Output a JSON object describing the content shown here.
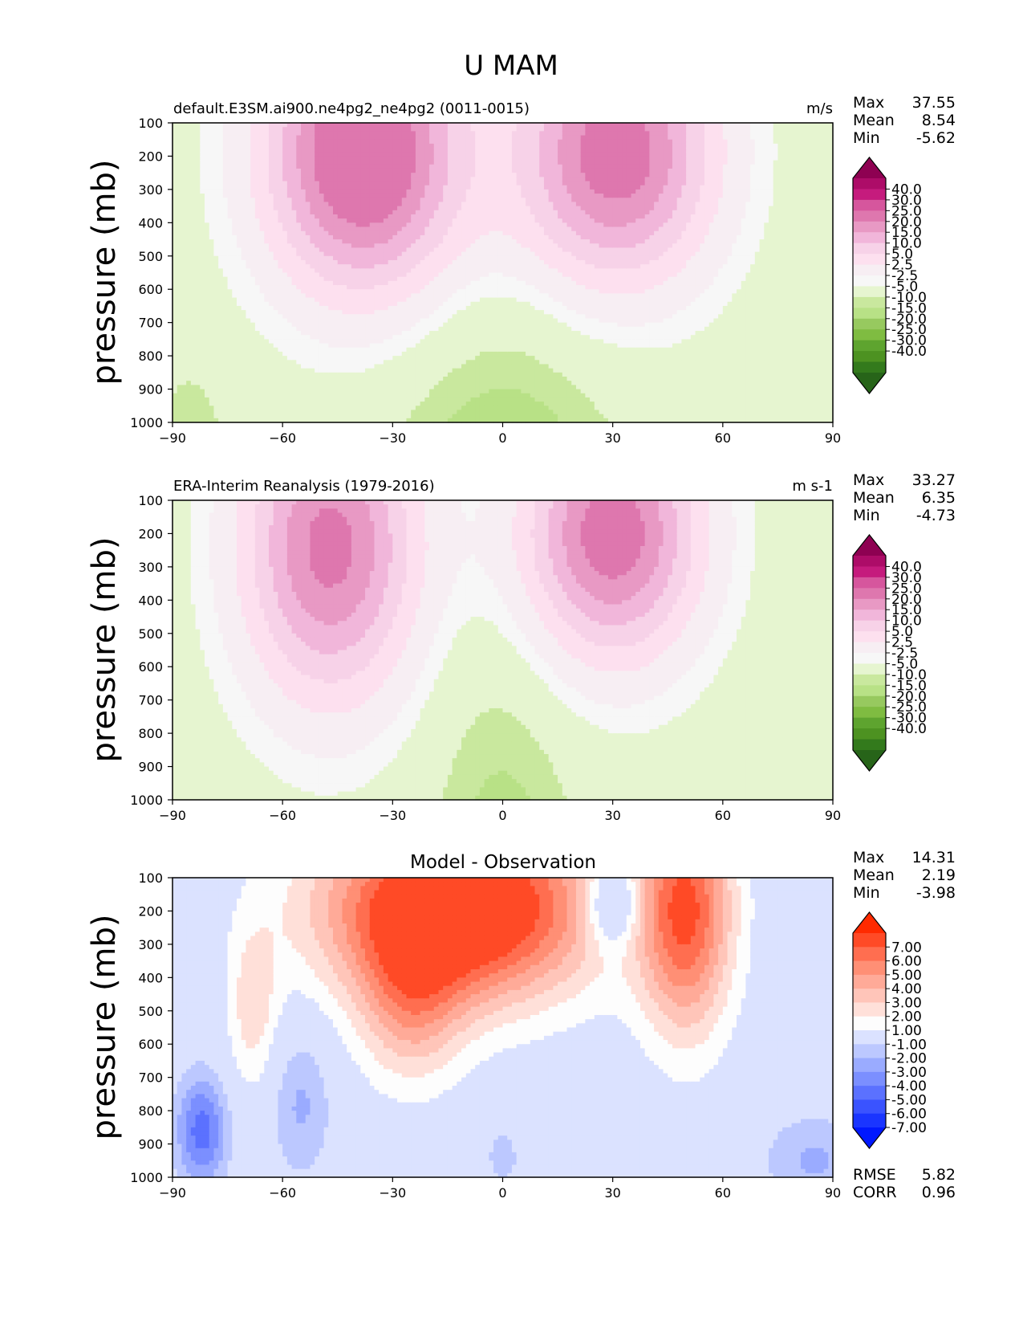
{
  "figure": {
    "title": "U MAM"
  },
  "panels": [
    {
      "id": "model",
      "title_left": "default.E3SM.ai900.ne4pg2_ne4pg2 (0011-0015)",
      "title_center": "",
      "units": "m/s",
      "stats": [
        {
          "label": "Max",
          "value": "37.55"
        },
        {
          "label": "Mean",
          "value": "8.54"
        },
        {
          "label": "Min",
          "value": "-5.62"
        }
      ],
      "extra_stats": []
    },
    {
      "id": "obs",
      "title_left": "ERA-Interim Reanalysis (1979-2016)",
      "title_center": "",
      "units": "m s-1",
      "stats": [
        {
          "label": "Max",
          "value": "33.27"
        },
        {
          "label": "Mean",
          "value": "6.35"
        },
        {
          "label": "Min",
          "value": "-4.73"
        }
      ],
      "extra_stats": []
    },
    {
      "id": "diff",
      "title_left": "",
      "title_center": "Model - Observation",
      "units": "",
      "stats": [
        {
          "label": "Max",
          "value": "14.31"
        },
        {
          "label": "Mean",
          "value": "2.19"
        },
        {
          "label": "Min",
          "value": "-3.98"
        }
      ],
      "extra_stats": [
        {
          "label": "RMSE",
          "value": "5.82"
        },
        {
          "label": "CORR",
          "value": "0.96"
        }
      ]
    }
  ],
  "chart_data": [
    {
      "type": "heatmap",
      "title": "default.E3SM.ai900.ne4pg2_ne4pg2 (0011-0015)",
      "xlabel": "",
      "ylabel": "pressure (mb)",
      "xlim": [
        -90,
        90
      ],
      "ylim": [
        1000,
        100
      ],
      "xticks": [
        "−90",
        "−60",
        "−30",
        "0",
        "30",
        "60",
        "90"
      ],
      "yticks": [
        "100",
        "200",
        "300",
        "400",
        "500",
        "600",
        "700",
        "800",
        "900",
        "1000"
      ],
      "levels": [
        -40,
        -30,
        -25,
        -20,
        -15,
        -10,
        -5,
        -2.5,
        2.5,
        5,
        10,
        15,
        20,
        25,
        30,
        40
      ],
      "colorbar_labels": [
        "40.0",
        "30.0",
        "25.0",
        "20.0",
        "15.0",
        "10.0",
        "5.0",
        "2.5",
        "-2.5",
        "-5.0",
        "-10.0",
        "-15.0",
        "-20.0",
        "-25.0",
        "-30.0",
        "-40.0"
      ],
      "colorbar_colors": [
        "#8e0152",
        "#ad0c68",
        "#c51b7d",
        "#d6569d",
        "#de77ae",
        "#e899c4",
        "#f1b6da",
        "#f7d2e8",
        "#fde0ef",
        "#f7eef3",
        "#f7f7f7",
        "#e6f5d0",
        "#c9e89e",
        "#b8e186",
        "#97c95f",
        "#7fbc41",
        "#5ea42f",
        "#4d9221",
        "#337a1c",
        "#276419"
      ],
      "jets": [
        {
          "lat": -38,
          "p": 200,
          "max": 37.5
        },
        {
          "lat": 30,
          "p": 200,
          "max": 33
        }
      ]
    },
    {
      "type": "heatmap",
      "title": "ERA-Interim Reanalysis (1979-2016)",
      "xlabel": "",
      "ylabel": "pressure (mb)",
      "xlim": [
        -90,
        90
      ],
      "ylim": [
        1000,
        100
      ],
      "xticks": [
        "−90",
        "−60",
        "−30",
        "0",
        "30",
        "60",
        "90"
      ],
      "yticks": [
        "100",
        "200",
        "300",
        "400",
        "500",
        "600",
        "700",
        "800",
        "900",
        "1000"
      ],
      "levels": [
        -40,
        -30,
        -25,
        -20,
        -15,
        -10,
        -5,
        -2.5,
        2.5,
        5,
        10,
        15,
        20,
        25,
        30,
        40
      ],
      "colorbar_labels": [
        "40.0",
        "30.0",
        "25.0",
        "20.0",
        "15.0",
        "10.0",
        "5.0",
        "2.5",
        "-2.5",
        "-5.0",
        "-10.0",
        "-15.0",
        "-20.0",
        "-25.0",
        "-30.0",
        "-40.0"
      ],
      "colorbar_colors": [
        "#8e0152",
        "#ad0c68",
        "#c51b7d",
        "#d6569d",
        "#de77ae",
        "#e899c4",
        "#f1b6da",
        "#f7d2e8",
        "#fde0ef",
        "#f7eef3",
        "#f7f7f7",
        "#e6f5d0",
        "#c9e89e",
        "#b8e186",
        "#97c95f",
        "#7fbc41",
        "#5ea42f",
        "#4d9221",
        "#337a1c",
        "#276419"
      ],
      "jets": [
        {
          "lat": -45,
          "p": 250,
          "max": 30
        },
        {
          "lat": 30,
          "p": 200,
          "max": 33
        }
      ]
    },
    {
      "type": "heatmap",
      "title": "Model - Observation",
      "xlabel": "",
      "ylabel": "pressure (mb)",
      "xlim": [
        -90,
        90
      ],
      "ylim": [
        1000,
        100
      ],
      "xticks": [
        "−90",
        "−60",
        "−30",
        "0",
        "30",
        "60",
        "90"
      ],
      "yticks": [
        "100",
        "200",
        "300",
        "400",
        "500",
        "600",
        "700",
        "800",
        "900",
        "1000"
      ],
      "levels": [
        -7,
        -6,
        -5,
        -4,
        -3,
        -2,
        -1,
        1,
        2,
        3,
        4,
        5,
        6,
        7
      ],
      "colorbar_labels": [
        "7.00",
        "6.00",
        "5.00",
        "4.00",
        "3.00",
        "2.00",
        "1.00",
        "-1.00",
        "-2.00",
        "-3.00",
        "-4.00",
        "-5.00",
        "-6.00",
        "-7.00"
      ],
      "colorbar_colors": [
        "#ff2a00",
        "#ff4a26",
        "#ff6e50",
        "#ff8f75",
        "#ffaa98",
        "#ffc5b9",
        "#ffe0d9",
        "#fdfdfd",
        "#dbe2ff",
        "#bcc8ff",
        "#9aabff",
        "#7b8fff",
        "#5b71ff",
        "#3a53ff",
        "#1a35ff",
        "#0018ff"
      ]
    }
  ]
}
